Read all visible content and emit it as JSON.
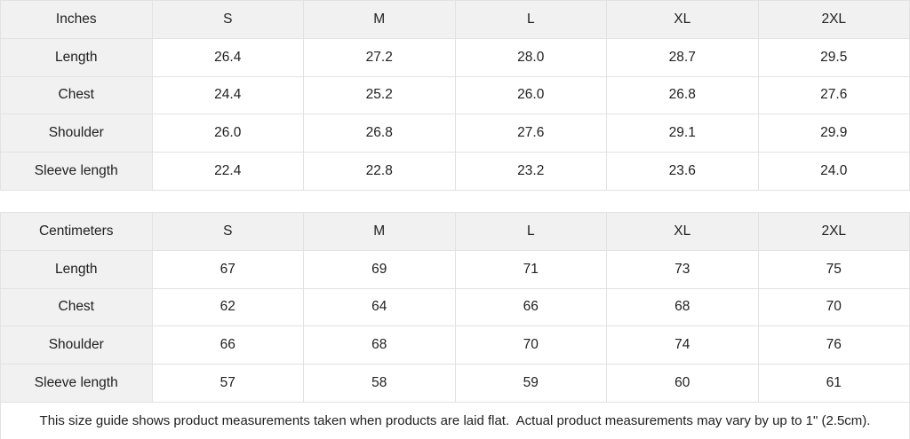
{
  "colors": {
    "header_cell_bg": "#f1f1f1",
    "border": "#e2e2e2",
    "text": "#212121",
    "data_cell_bg": "#ffffff"
  },
  "tables": [
    {
      "unit_label": "Inches",
      "sizes": [
        "S",
        "M",
        "L",
        "XL",
        "2XL"
      ],
      "rows": [
        {
          "label": "Length",
          "values": [
            "26.4",
            "27.2",
            "28.0",
            "28.7",
            "29.5"
          ]
        },
        {
          "label": "Chest",
          "values": [
            "24.4",
            "25.2",
            "26.0",
            "26.8",
            "27.6"
          ]
        },
        {
          "label": "Shoulder",
          "values": [
            "26.0",
            "26.8",
            "27.6",
            "29.1",
            "29.9"
          ]
        },
        {
          "label": "Sleeve length",
          "values": [
            "22.4",
            "22.8",
            "23.2",
            "23.6",
            "24.0"
          ]
        }
      ]
    },
    {
      "unit_label": "Centimeters",
      "sizes": [
        "S",
        "M",
        "L",
        "XL",
        "2XL"
      ],
      "rows": [
        {
          "label": "Length",
          "values": [
            "67",
            "69",
            "71",
            "73",
            "75"
          ]
        },
        {
          "label": "Chest",
          "values": [
            "62",
            "64",
            "66",
            "68",
            "70"
          ]
        },
        {
          "label": "Shoulder",
          "values": [
            "66",
            "68",
            "70",
            "74",
            "76"
          ]
        },
        {
          "label": "Sleeve length",
          "values": [
            "57",
            "58",
            "59",
            "60",
            "61"
          ]
        }
      ]
    }
  ],
  "footer": {
    "note": "This size guide shows product measurements taken when products are laid flat.  Actual product measurements may vary by up to 1\" (2.5cm)."
  }
}
